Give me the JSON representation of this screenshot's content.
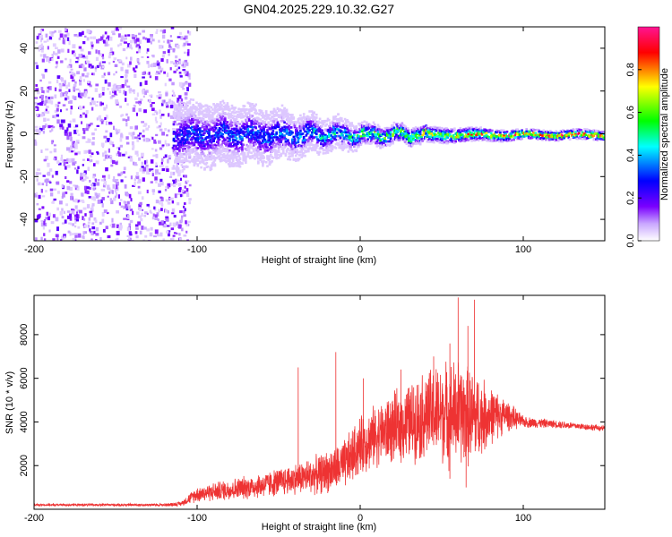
{
  "title": "GN04.2025.229.10.32.G27",
  "chart_data": [
    {
      "type": "heatmap",
      "title": "GN04.2025.229.10.32.G27",
      "xlabel": "Height of straight line (km)",
      "ylabel": "Frequency (Hz)",
      "xlim": [
        -200,
        150
      ],
      "ylim": [
        -50,
        50
      ],
      "x_ticks": [
        -200,
        -100,
        0,
        100
      ],
      "y_ticks": [
        -40,
        -20,
        0,
        20,
        40
      ],
      "colorbar": {
        "label": "Normalized spectral amplitude",
        "range": [
          0,
          1
        ],
        "ticks": [
          "0.0",
          "0.2",
          "0.4",
          "0.6",
          "0.8"
        ],
        "colors": [
          "#ffffff",
          "#9b30ff",
          "#0000ff",
          "#00ffff",
          "#00ff00",
          "#ffff00",
          "#ff0000",
          "#ff1493"
        ]
      },
      "features": {
        "noise_region_x": [
          -200,
          -105
        ],
        "signal_band_center_hz": 0,
        "signal_band_start_x": -115,
        "band_halfwidth_hz": [
          [
            -115,
            10
          ],
          [
            -60,
            8
          ],
          [
            -20,
            5
          ],
          [
            0,
            4
          ],
          [
            50,
            3
          ],
          [
            100,
            2
          ],
          [
            150,
            2
          ]
        ],
        "peak_amplitude": [
          [
            -115,
            0.3
          ],
          [
            -60,
            0.35
          ],
          [
            -20,
            0.45
          ],
          [
            20,
            0.6
          ],
          [
            60,
            0.75
          ],
          [
            100,
            0.85
          ],
          [
            150,
            0.9
          ]
        ]
      }
    },
    {
      "type": "line",
      "xlabel": "Height of straight line (km)",
      "ylabel": "SNR (10 * v/v)",
      "xlim": [
        -200,
        150
      ],
      "ylim": [
        0,
        9800
      ],
      "x_ticks": [
        -200,
        -100,
        0,
        100
      ],
      "y_ticks": [
        2000,
        4000,
        6000,
        8000
      ],
      "color": "#ee3333",
      "envelope": {
        "x": [
          -200,
          -120,
          -110,
          -100,
          -80,
          -60,
          -40,
          -25,
          -10,
          0,
          10,
          20,
          30,
          40,
          50,
          60,
          70,
          80,
          90,
          100,
          120,
          150
        ],
        "mean": [
          200,
          200,
          250,
          700,
          900,
          1100,
          1400,
          1600,
          2000,
          2900,
          3400,
          3700,
          4000,
          4300,
          4400,
          4400,
          4200,
          4300,
          4300,
          4000,
          3900,
          3700
        ],
        "amplitude": [
          60,
          80,
          120,
          400,
          550,
          650,
          800,
          1000,
          1300,
          1500,
          1600,
          1800,
          2000,
          2300,
          2600,
          2800,
          2400,
          1500,
          800,
          300,
          200,
          150
        ]
      },
      "spikes": [
        [
          -38,
          6500
        ],
        [
          -15,
          7200
        ],
        [
          2,
          6000
        ],
        [
          25,
          6400
        ],
        [
          45,
          7000
        ],
        [
          55,
          7600
        ],
        [
          60,
          9700
        ],
        [
          66,
          8400
        ],
        [
          70,
          9600
        ],
        [
          65,
          1000
        ],
        [
          55,
          1400
        ]
      ]
    }
  ]
}
